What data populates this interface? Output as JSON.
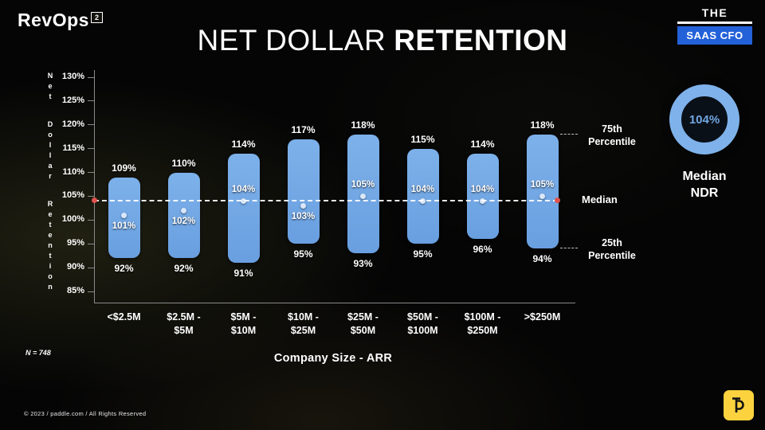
{
  "logo": {
    "text": "RevOps",
    "sup": "2"
  },
  "brand": {
    "the": "THE",
    "saas_cfo": "SAAS CFO"
  },
  "title": {
    "regular": "NET DOLLAR",
    "bold": "RETENTION"
  },
  "chart_data": {
    "type": "floating-bar",
    "title": "NET DOLLAR RETENTION",
    "xlabel": "Company Size - ARR",
    "ylabel": "Net Dollar Retention",
    "ylim": [
      85,
      130
    ],
    "yticks": [
      130,
      125,
      120,
      115,
      110,
      105,
      100,
      95,
      90,
      85
    ],
    "ytick_suffix": "%",
    "grid": false,
    "bar_color": "#6FA5E3",
    "categories": [
      "<$2.5M",
      "$2.5M -\n$5M",
      "$5M -\n$10M",
      "$10M -\n$25M",
      "$25M -\n$50M",
      "$50M -\n$100M",
      "$100M -\n$250M",
      ">$250M"
    ],
    "series": [
      {
        "name": "75th Percentile",
        "values": [
          109,
          110,
          114,
          117,
          118,
          115,
          114,
          118
        ]
      },
      {
        "name": "Median",
        "values": [
          101,
          102,
          104,
          103,
          105,
          104,
          104,
          105
        ]
      },
      {
        "name": "25th Percentile",
        "values": [
          92,
          92,
          91,
          95,
          93,
          95,
          96,
          94
        ]
      }
    ],
    "median_line_value": 104,
    "annotations": {
      "p75": "75th Percentile",
      "median": "Median",
      "p25": "25th Percentile"
    },
    "sample_size": "N = 748"
  },
  "kpi": {
    "value": "104%",
    "label": "Median\nNDR"
  },
  "footer": "© 2023 / paddle.com / All Rights Reserved"
}
